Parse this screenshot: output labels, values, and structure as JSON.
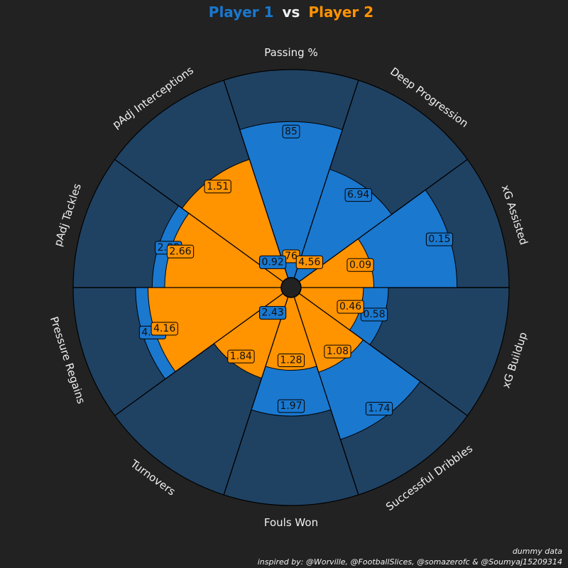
{
  "title": {
    "player1": "Player 1",
    "vs": "vs",
    "player2": "Player 2"
  },
  "colors": {
    "background": "#222222",
    "slice_bg": "#1f4263",
    "player1": "#1a78cf",
    "player2": "#ff9300",
    "edge": "#000000",
    "text": "#f0f0f0"
  },
  "chart_data": {
    "type": "pizza",
    "params": [
      "Passing %",
      "Deep Progression",
      "xG Assisted",
      "xG Buildup",
      "Successful Dribbles",
      "Fouls Won",
      "Turnovers",
      "Pressure Regains",
      "pAdj Tackles",
      "pAdj Interceptions"
    ],
    "series": [
      {
        "name": "Player 1",
        "values": [
          85,
          6.94,
          0.15,
          0.58,
          1.74,
          1.97,
          2.43,
          4.27,
          2.88,
          0.92
        ],
        "percentiles": [
          75,
          55,
          75,
          42,
          72,
          57,
          0,
          70,
          62,
          0
        ]
      },
      {
        "name": "Player 2",
        "values": [
          76,
          4.56,
          0.09,
          0.46,
          1.08,
          1.28,
          1.84,
          4.16,
          2.66,
          1.51
        ],
        "percentiles": [
          0,
          0,
          35,
          30,
          38,
          35,
          41,
          64,
          56,
          60
        ]
      }
    ],
    "value_range": [
      0,
      100
    ]
  },
  "footer": {
    "note": "dummy data",
    "credit": "inspired by: @Worville, @FootballSlices, @somazerofc & @Soumyaj15209314"
  }
}
